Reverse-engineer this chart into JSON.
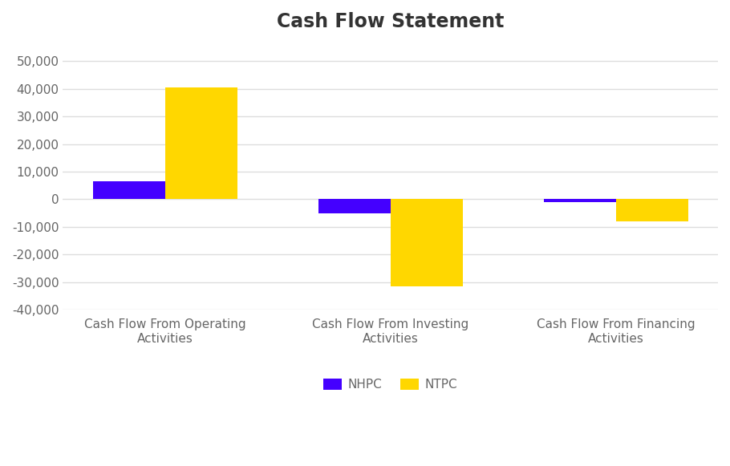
{
  "title": "Cash Flow Statement",
  "categories": [
    "Cash Flow From Operating\nActivities",
    "Cash Flow From Investing\nActivities",
    "Cash Flow From Financing\nActivities"
  ],
  "nhpc_values": [
    6500,
    -5000,
    -1000
  ],
  "ntpc_values": [
    40500,
    -31500,
    -8000
  ],
  "nhpc_color": "#4400ff",
  "ntpc_color": "#ffd700",
  "background_color": "#ffffff",
  "grid_color": "#dddddd",
  "ylim": [
    -40000,
    55000
  ],
  "yticks": [
    -40000,
    -30000,
    -20000,
    -10000,
    0,
    10000,
    20000,
    30000,
    40000,
    50000
  ],
  "legend_labels": [
    "NHPC",
    "NTPC"
  ],
  "bar_width": 0.32,
  "title_fontsize": 17,
  "tick_fontsize": 11,
  "label_fontsize": 11,
  "title_color": "#333333",
  "tick_color": "#666666"
}
